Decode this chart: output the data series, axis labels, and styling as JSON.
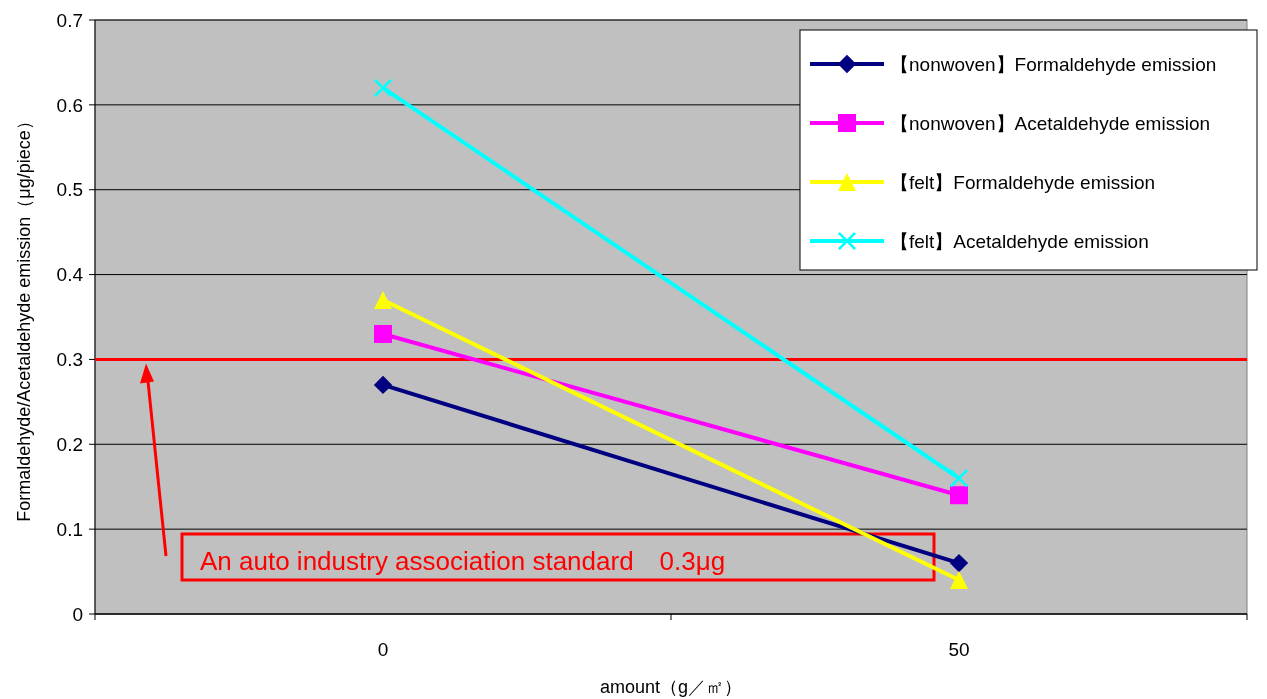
{
  "chart_data": {
    "type": "line",
    "xlabel": "amount（g／㎡）",
    "ylabel": "Formaldehyde/Acetaldehyde emission（μg/piece）",
    "x": [
      0,
      50
    ],
    "xlim": [
      -25,
      75
    ],
    "xticks": [
      {
        "value": -25,
        "label": null
      },
      0,
      {
        "value": 25,
        "label": null
      },
      50,
      {
        "value": 75,
        "label": null
      }
    ],
    "series": [
      {
        "name": "【nonwoven】Formaldehyde emission",
        "color": "#000080",
        "marker": "diamond",
        "values": [
          0.27,
          0.06
        ]
      },
      {
        "name": "【nonwoven】Acetaldehyde emission",
        "color": "#ff00ff",
        "marker": "square",
        "values": [
          0.33,
          0.14
        ]
      },
      {
        "name": "【felt】Formaldehyde emission",
        "color": "#ffff00",
        "marker": "triangle",
        "values": [
          0.37,
          0.04
        ]
      },
      {
        "name": "【felt】Acetaldehyde emission",
        "color": "#00ffff",
        "marker": "cross",
        "values": [
          0.62,
          0.16
        ]
      }
    ],
    "ylim": [
      0,
      0.7
    ],
    "yticks": [
      0,
      0.1,
      0.2,
      0.3,
      0.4,
      0.5,
      0.6,
      0.7
    ],
    "grid": "y",
    "legend": "top right",
    "ref_lines": [
      {
        "axis": "y",
        "value": 0.3,
        "label": "An auto industry association standard　0.3μg",
        "color": "#ff0000"
      }
    ]
  }
}
